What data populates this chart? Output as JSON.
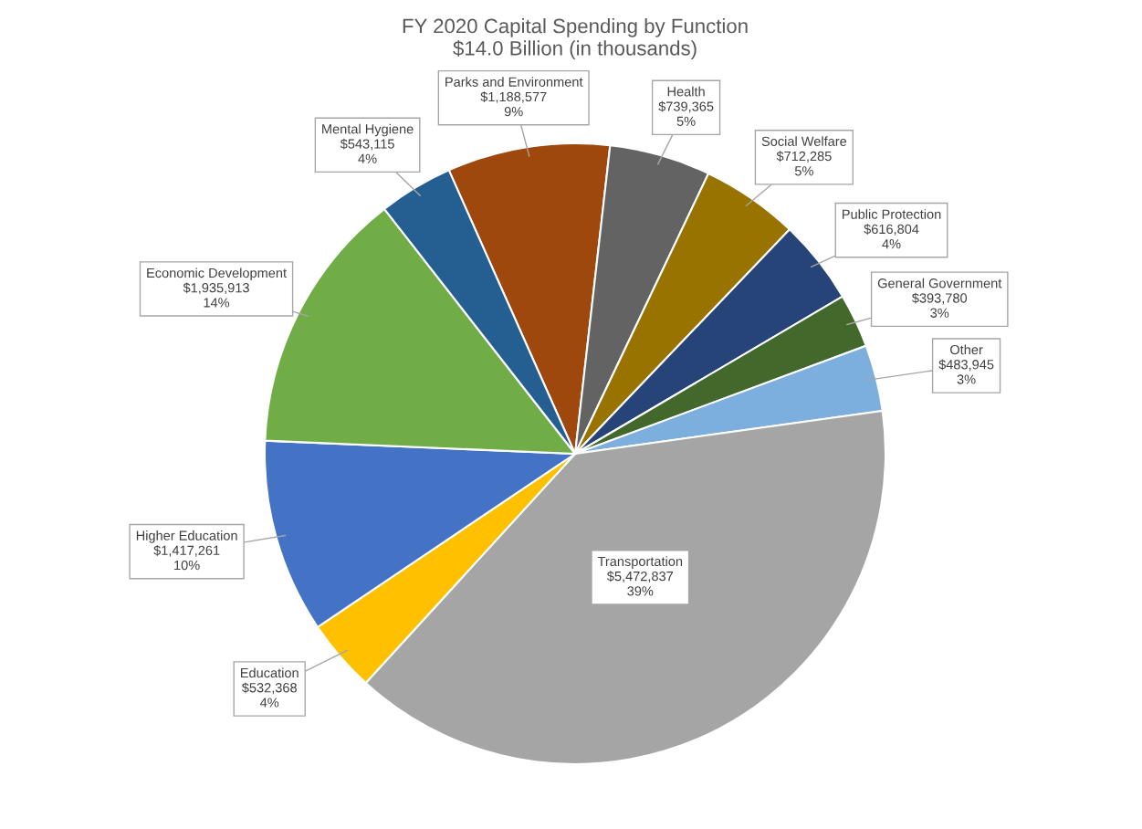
{
  "chart_data": {
    "type": "pie",
    "title": "FY 2020 Capital Spending by Function",
    "subtitle": "$14.0 Billion (in thousands)",
    "categories": [
      "Parks and Environment",
      "Health",
      "Social Welfare",
      "Public Protection",
      "General Government",
      "Other",
      "Transportation",
      "Education",
      "Higher Education",
      "Economic Development",
      "Mental Hygiene"
    ],
    "values": [
      1188577,
      739365,
      712285,
      616804,
      393780,
      483945,
      5472837,
      532368,
      1417261,
      1935913,
      543115
    ],
    "value_labels": [
      "$1,188,577\n9%",
      "$739,365\n5%",
      "$712,285\n5%",
      "$616,804\n4%",
      "$393,780\n3%",
      "$483,945\n3%",
      "$5,472,837\n39%",
      "$532,368\n4%",
      "$1,417,261\n10%",
      "$1,935,913\n14%",
      "$543,115\n4%"
    ],
    "colors": [
      "#9e480e",
      "#636363",
      "#997300",
      "#264478",
      "#43682b",
      "#7cafdd",
      "#a5a5a5",
      "#ffc000",
      "#4472c4",
      "#70ad47",
      "#255e91"
    ],
    "legend": false
  }
}
